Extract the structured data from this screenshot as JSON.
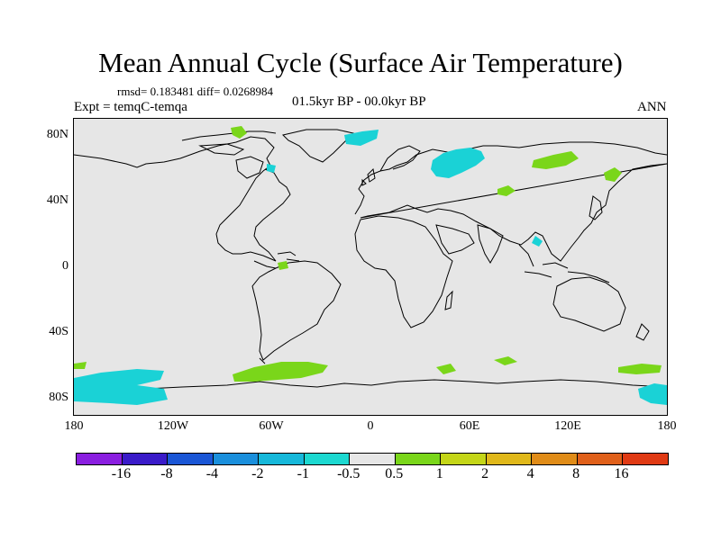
{
  "title": "Mean Annual Cycle (Surface Air Temperature)",
  "stats": "rmsd= 0.183481 diff= 0.0268984",
  "experiment": "Expt = temqC-temqa",
  "period": "01.5kyr BP - 00.0kyr BP",
  "season": "ANN",
  "lat_labels": [
    "80N",
    "40N",
    "0",
    "40S",
    "80S"
  ],
  "lon_labels": [
    "180",
    "120W",
    "60W",
    "0",
    "60E",
    "120E",
    "180"
  ],
  "colorbar": {
    "colors": [
      "#8a1ee0",
      "#3a1bc9",
      "#1a56d6",
      "#1a8fdc",
      "#16b8da",
      "#1cd8d0",
      "#e6e6e6",
      "#7ad61a",
      "#c4d618",
      "#e0b81a",
      "#e08c18",
      "#e0601a",
      "#e03a14"
    ],
    "labels": [
      "-16",
      "-8",
      "-4",
      "-2",
      "-1",
      "-0.5",
      "0.5",
      "1",
      "2",
      "4",
      "8",
      "16"
    ]
  },
  "anomaly_colors": {
    "cyan": "#1ad2d6",
    "green": "#7ad61a"
  }
}
